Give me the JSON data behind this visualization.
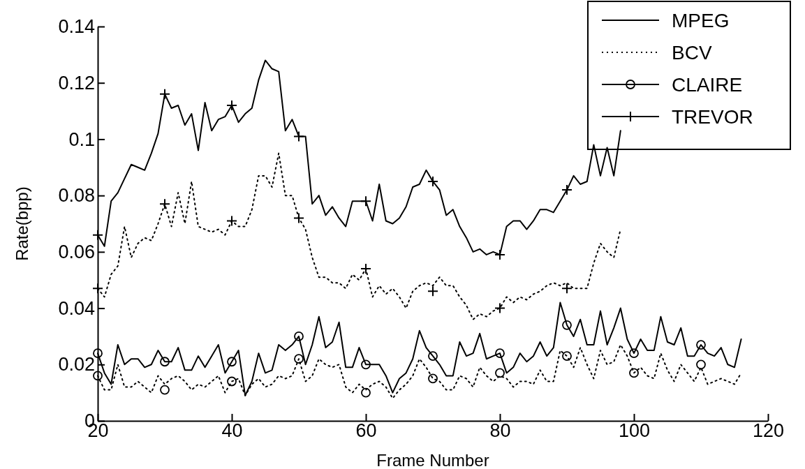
{
  "chart_data": {
    "type": "line",
    "xlabel": "Frame Number",
    "ylabel": "Rate(bpp)",
    "xlim": [
      20,
      120
    ],
    "xticks": [
      20,
      40,
      60,
      80,
      100,
      120
    ],
    "ylim": [
      0,
      0.14
    ],
    "yticks": [
      0,
      0.02,
      0.04,
      0.06,
      0.08,
      0.1,
      0.12,
      0.14
    ],
    "grid": false,
    "legend": "top right",
    "series": [
      {
        "name": "MPEG",
        "color": "#000000",
        "line_style": "solid",
        "marker": "none",
        "x": [
          20,
          21,
          22,
          23,
          24,
          25,
          26,
          27,
          28,
          29,
          30,
          31,
          32,
          33,
          34,
          35,
          36,
          37,
          38,
          39,
          40,
          41,
          42,
          43,
          44,
          45,
          46,
          47,
          48,
          49,
          50,
          51,
          52,
          53,
          54,
          55,
          56,
          57,
          58,
          59,
          60,
          61,
          62,
          63,
          64,
          65,
          66,
          67,
          68,
          69,
          70,
          71,
          72,
          73,
          74,
          75,
          76,
          77,
          78,
          79,
          80,
          81,
          82,
          83,
          84,
          85,
          86,
          87,
          88,
          89,
          90,
          91,
          92,
          93,
          94,
          95,
          96,
          97,
          98
        ],
        "values": [
          0.066,
          0.062,
          0.078,
          0.081,
          0.086,
          0.091,
          0.09,
          0.089,
          0.095,
          0.102,
          0.116,
          0.111,
          0.112,
          0.105,
          0.109,
          0.096,
          0.113,
          0.103,
          0.107,
          0.108,
          0.112,
          0.106,
          0.109,
          0.111,
          0.121,
          0.128,
          0.125,
          0.124,
          0.103,
          0.107,
          0.101,
          0.101,
          0.077,
          0.08,
          0.073,
          0.076,
          0.072,
          0.069,
          0.078,
          0.078,
          0.078,
          0.071,
          0.084,
          0.071,
          0.07,
          0.072,
          0.076,
          0.083,
          0.084,
          0.089,
          0.085,
          0.082,
          0.073,
          0.075,
          0.069,
          0.065,
          0.06,
          0.061,
          0.059,
          0.06,
          0.059,
          0.069,
          0.071,
          0.071,
          0.068,
          0.071,
          0.075,
          0.075,
          0.074,
          0.078,
          0.082,
          0.087,
          0.084,
          0.085,
          0.098,
          0.087,
          0.097,
          0.087,
          0.103
        ]
      },
      {
        "name": "BCV",
        "color": "#000000",
        "line_style": "dotted",
        "marker": "none",
        "x": [
          20,
          21,
          22,
          23,
          24,
          25,
          26,
          27,
          28,
          29,
          30,
          31,
          32,
          33,
          34,
          35,
          36,
          37,
          38,
          39,
          40,
          41,
          42,
          43,
          44,
          45,
          46,
          47,
          48,
          49,
          50,
          51,
          52,
          53,
          54,
          55,
          56,
          57,
          58,
          59,
          60,
          61,
          62,
          63,
          64,
          65,
          66,
          67,
          68,
          69,
          70,
          71,
          72,
          73,
          74,
          75,
          76,
          77,
          78,
          79,
          80,
          81,
          82,
          83,
          84,
          85,
          86,
          87,
          88,
          89,
          90,
          91,
          92,
          93,
          94,
          95,
          96,
          97,
          98
        ],
        "values": [
          0.047,
          0.044,
          0.052,
          0.055,
          0.069,
          0.058,
          0.063,
          0.065,
          0.064,
          0.07,
          0.077,
          0.069,
          0.081,
          0.07,
          0.085,
          0.069,
          0.068,
          0.067,
          0.068,
          0.066,
          0.071,
          0.069,
          0.069,
          0.075,
          0.087,
          0.087,
          0.083,
          0.095,
          0.08,
          0.08,
          0.072,
          0.068,
          0.058,
          0.051,
          0.051,
          0.049,
          0.049,
          0.047,
          0.052,
          0.05,
          0.054,
          0.044,
          0.048,
          0.045,
          0.047,
          0.044,
          0.04,
          0.046,
          0.048,
          0.049,
          0.048,
          0.051,
          0.048,
          0.048,
          0.044,
          0.041,
          0.036,
          0.038,
          0.037,
          0.039,
          0.04,
          0.044,
          0.042,
          0.044,
          0.043,
          0.045,
          0.046,
          0.048,
          0.049,
          0.048,
          0.049,
          0.047,
          0.047,
          0.047,
          0.056,
          0.063,
          0.06,
          0.058,
          0.068
        ]
      },
      {
        "color": "#000000",
        "line_style": "solid",
        "marker": "none",
        "x": [
          20,
          21,
          22,
          23,
          24,
          25,
          26,
          27,
          28,
          29,
          30,
          31,
          32,
          33,
          34,
          35,
          36,
          37,
          38,
          39,
          40,
          41,
          42,
          43,
          44,
          45,
          46,
          47,
          48,
          49,
          50,
          51,
          52,
          53,
          54,
          55,
          56,
          57,
          58,
          59,
          60,
          61,
          62,
          63,
          64,
          65,
          66,
          67,
          68,
          69,
          70,
          71,
          72,
          73,
          74,
          75,
          76,
          77,
          78,
          79,
          80,
          81,
          82,
          83,
          84,
          85,
          86,
          87,
          88,
          89,
          90,
          91,
          92,
          93,
          94,
          95,
          96,
          97,
          98,
          99,
          100,
          101,
          102,
          103,
          104,
          105,
          106,
          107,
          108,
          109,
          110,
          111,
          112,
          113,
          114,
          115,
          116
        ],
        "values": [
          0.024,
          0.017,
          0.013,
          0.027,
          0.02,
          0.022,
          0.022,
          0.019,
          0.02,
          0.025,
          0.021,
          0.021,
          0.026,
          0.018,
          0.018,
          0.023,
          0.019,
          0.023,
          0.027,
          0.017,
          0.021,
          0.025,
          0.009,
          0.014,
          0.024,
          0.017,
          0.018,
          0.027,
          0.025,
          0.027,
          0.03,
          0.02,
          0.027,
          0.037,
          0.026,
          0.028,
          0.035,
          0.019,
          0.019,
          0.026,
          0.02,
          0.02,
          0.02,
          0.016,
          0.01,
          0.015,
          0.017,
          0.022,
          0.032,
          0.026,
          0.023,
          0.02,
          0.016,
          0.016,
          0.028,
          0.023,
          0.024,
          0.031,
          0.022,
          0.023,
          0.024,
          0.017,
          0.019,
          0.024,
          0.021,
          0.023,
          0.028,
          0.023,
          0.026,
          0.042,
          0.034,
          0.03,
          0.036,
          0.027,
          0.027,
          0.039,
          0.027,
          0.033,
          0.04,
          0.029,
          0.024,
          0.029,
          0.025,
          0.025,
          0.037,
          0.028,
          0.027,
          0.033,
          0.023,
          0.023,
          0.027,
          0.024,
          0.023,
          0.026,
          0.02,
          0.019,
          0.029
        ]
      },
      {
        "color": "#000000",
        "line_style": "dotted",
        "marker": "none",
        "x": [
          20,
          21,
          22,
          23,
          24,
          25,
          26,
          27,
          28,
          29,
          30,
          31,
          32,
          33,
          34,
          35,
          36,
          37,
          38,
          39,
          40,
          41,
          42,
          43,
          44,
          45,
          46,
          47,
          48,
          49,
          50,
          51,
          52,
          53,
          54,
          55,
          56,
          57,
          58,
          59,
          60,
          61,
          62,
          63,
          64,
          65,
          66,
          67,
          68,
          69,
          70,
          71,
          72,
          73,
          74,
          75,
          76,
          77,
          78,
          79,
          80,
          81,
          82,
          83,
          84,
          85,
          86,
          87,
          88,
          89,
          90,
          91,
          92,
          93,
          94,
          95,
          96,
          97,
          98,
          99,
          100,
          101,
          102,
          103,
          104,
          105,
          106,
          107,
          108,
          109,
          110,
          111,
          112,
          113,
          114,
          115,
          116
        ],
        "values": [
          0.016,
          0.011,
          0.011,
          0.02,
          0.012,
          0.012,
          0.014,
          0.012,
          0.01,
          0.016,
          0.013,
          0.015,
          0.016,
          0.014,
          0.011,
          0.013,
          0.012,
          0.014,
          0.016,
          0.01,
          0.014,
          0.015,
          0.009,
          0.013,
          0.015,
          0.012,
          0.013,
          0.016,
          0.015,
          0.016,
          0.022,
          0.014,
          0.016,
          0.022,
          0.02,
          0.019,
          0.02,
          0.012,
          0.01,
          0.013,
          0.011,
          0.013,
          0.014,
          0.012,
          0.008,
          0.011,
          0.013,
          0.016,
          0.022,
          0.019,
          0.015,
          0.014,
          0.011,
          0.011,
          0.016,
          0.015,
          0.012,
          0.019,
          0.016,
          0.014,
          0.016,
          0.015,
          0.012,
          0.014,
          0.014,
          0.013,
          0.018,
          0.014,
          0.014,
          0.025,
          0.023,
          0.019,
          0.026,
          0.02,
          0.015,
          0.025,
          0.02,
          0.021,
          0.027,
          0.023,
          0.017,
          0.019,
          0.016,
          0.015,
          0.024,
          0.018,
          0.014,
          0.02,
          0.017,
          0.014,
          0.019,
          0.013,
          0.014,
          0.015,
          0.014,
          0.013,
          0.017
        ]
      },
      {
        "name": "CLAIRE",
        "type": "scatter",
        "color": "#000000",
        "marker": "circle",
        "x": [
          20,
          30,
          40,
          50,
          60,
          70,
          80,
          90,
          100,
          110,
          20,
          30,
          40,
          50,
          60,
          70,
          80,
          90,
          100,
          110
        ],
        "values": [
          0.024,
          0.021,
          0.021,
          0.03,
          0.02,
          0.023,
          0.024,
          0.034,
          0.024,
          0.027,
          0.016,
          0.011,
          0.014,
          0.022,
          0.01,
          0.015,
          0.017,
          0.023,
          0.017,
          0.02
        ]
      },
      {
        "name": "TREVOR",
        "type": "scatter",
        "color": "#000000",
        "marker": "cross",
        "x": [
          20,
          30,
          40,
          50,
          60,
          70,
          80,
          90,
          20,
          30,
          40,
          50,
          60,
          70,
          80,
          90
        ],
        "values": [
          0.066,
          0.116,
          0.112,
          0.101,
          0.078,
          0.085,
          0.059,
          0.082,
          0.047,
          0.077,
          0.071,
          0.072,
          0.054,
          0.046,
          0.04,
          0.047
        ]
      }
    ]
  }
}
